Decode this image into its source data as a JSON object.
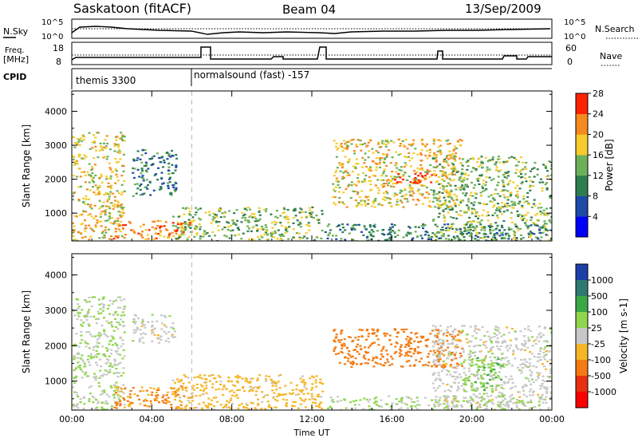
{
  "header": {
    "station": "Saskatoon (fitACF)",
    "beam": "Beam 04",
    "date": "13/Sep/2009"
  },
  "summary_panels": {
    "nsky_label": "N.Sky",
    "nsky_ticks": [
      "10^5",
      "10^0"
    ],
    "nsearch_label": "N.Search",
    "freq_label_1": "Freq.",
    "freq_label_2": "[MHz]",
    "freq_ticks": [
      "18",
      "8"
    ],
    "nave_ticks": [
      "60",
      "0"
    ],
    "nave_label": "Nave",
    "cpid_label": "CPID",
    "cpid_1": "themis 3300",
    "cpid_2": "normalsound (fast) -157"
  },
  "chart_data": [
    {
      "type": "heatmap",
      "name": "power",
      "ylabel": "Slant Range [km]",
      "xlabel": "",
      "xlim": [
        0,
        24
      ],
      "ylim": [
        180,
        4600
      ],
      "yticks": [
        "1000",
        "2000",
        "3000",
        "4000"
      ],
      "colorbar": {
        "label": "Power [dB]",
        "ticks": [
          "4",
          "8",
          "12",
          "16",
          "20",
          "24",
          "28"
        ],
        "colors": [
          "#0000ff",
          "#1e4aa8",
          "#2d7d4e",
          "#6db05a",
          "#f5cc2c",
          "#f58a1f",
          "#ff2200"
        ]
      },
      "regions": [
        {
          "t0": 0.0,
          "t1": 2.6,
          "r0": 200,
          "r1": 3400,
          "level": 18
        },
        {
          "t0": 2.0,
          "t1": 6.0,
          "r0": 250,
          "r1": 800,
          "level": 22
        },
        {
          "t0": 3.0,
          "t1": 5.2,
          "r0": 1500,
          "r1": 2900,
          "level": 9
        },
        {
          "t0": 5.0,
          "t1": 12.5,
          "r0": 200,
          "r1": 1200,
          "level": 14
        },
        {
          "t0": 13.0,
          "t1": 19.5,
          "r0": 1200,
          "r1": 3200,
          "level": 18
        },
        {
          "t0": 16.0,
          "t1": 18.2,
          "r0": 1900,
          "r1": 2200,
          "level": 26
        },
        {
          "t0": 18.0,
          "t1": 24.0,
          "r0": 200,
          "r1": 2700,
          "level": 14
        },
        {
          "t0": 12.5,
          "t1": 24.0,
          "r0": 200,
          "r1": 700,
          "level": 10
        }
      ]
    },
    {
      "type": "heatmap",
      "name": "velocity",
      "ylabel": "Slant Range [km]",
      "xlabel": "Time UT",
      "xlim": [
        0,
        24
      ],
      "ylim": [
        180,
        4600
      ],
      "yticks": [
        "1000",
        "2000",
        "3000",
        "4000"
      ],
      "xticks": [
        "00:00",
        "04:00",
        "08:00",
        "12:00",
        "16:00",
        "20:00",
        "00:00"
      ],
      "colorbar": {
        "label": "Velocity [m s-1]",
        "ticks": [
          "1000",
          "500",
          "100",
          "25",
          "-25",
          "-100",
          "-500",
          "-1000"
        ],
        "colors": [
          "#1e3ea8",
          "#2f7a70",
          "#3aa845",
          "#8fd64c",
          "#c8c8c8",
          "#f5b626",
          "#f57a12",
          "#e83010",
          "#ff0000"
        ]
      },
      "regions": [
        {
          "t0": 0.0,
          "t1": 2.6,
          "r0": 200,
          "r1": 3400,
          "level": 25
        },
        {
          "t0": 2.0,
          "t1": 6.0,
          "r0": 250,
          "r1": 900,
          "level": -100
        },
        {
          "t0": 3.0,
          "t1": 5.2,
          "r0": 2100,
          "r1": 2900,
          "level": 0
        },
        {
          "t0": 5.0,
          "t1": 12.5,
          "r0": 200,
          "r1": 1200,
          "level": -50
        },
        {
          "t0": 13.0,
          "t1": 19.5,
          "r0": 1400,
          "r1": 2500,
          "level": -300
        },
        {
          "t0": 18.0,
          "t1": 24.0,
          "r0": 300,
          "r1": 2600,
          "level": 0
        },
        {
          "t0": 19.5,
          "t1": 21.5,
          "r0": 600,
          "r1": 1700,
          "level": 80
        },
        {
          "t0": 12.5,
          "t1": 24.0,
          "r0": 200,
          "r1": 600,
          "level": 30
        }
      ]
    }
  ]
}
